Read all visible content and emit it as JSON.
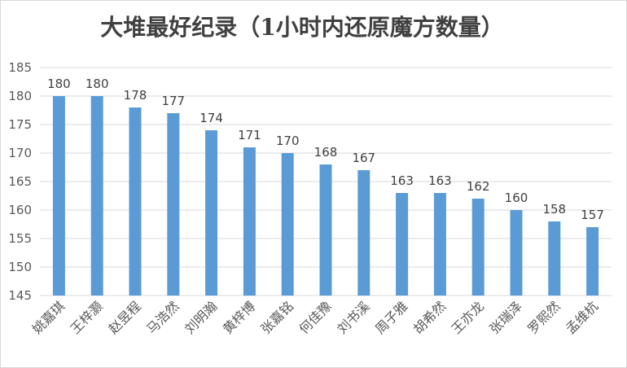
{
  "chart_data": {
    "type": "bar",
    "title": "大堆最好纪录（1小时内还原魔方数量）",
    "xlabel": "",
    "ylabel": "",
    "categories": [
      "姚嘉琪",
      "王梓灏",
      "赵昱程",
      "马浩然",
      "刘明瀚",
      "黄梓博",
      "张嘉铭",
      "何佳豫",
      "刘书溪",
      "周子雅",
      "胡希然",
      "王亦龙",
      "张瑞泽",
      "罗熙然",
      "孟维杭"
    ],
    "values": [
      180,
      180,
      178,
      177,
      174,
      171,
      170,
      168,
      167,
      163,
      163,
      162,
      160,
      158,
      157
    ],
    "data_labels": [
      "180",
      "180",
      "178",
      "177",
      "174",
      "171",
      "170",
      "168",
      "167",
      "163",
      "163",
      "162",
      "160",
      "158",
      "157"
    ],
    "ylim": [
      145,
      185
    ],
    "yticks": [
      "145",
      "150",
      "155",
      "160",
      "165",
      "170",
      "175",
      "180",
      "185"
    ],
    "grid": true,
    "legend": "none",
    "bar_color": "#5b9bd5",
    "grid_color": "#d9d9d9"
  }
}
